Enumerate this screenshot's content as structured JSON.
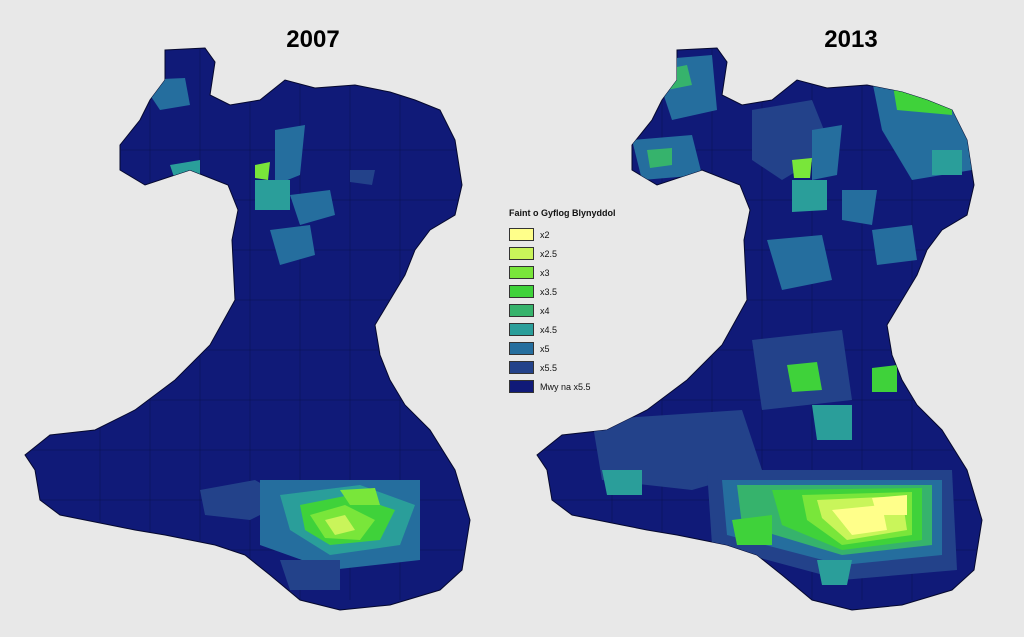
{
  "maps": [
    {
      "year": "2007"
    },
    {
      "year": "2013"
    }
  ],
  "legend": {
    "title": "Faint o Gyflog Blynyddol",
    "items": [
      {
        "label": "x2",
        "color": "#ffff8a"
      },
      {
        "label": "x2.5",
        "color": "#c9f55a"
      },
      {
        "label": "x3",
        "color": "#79e63a"
      },
      {
        "label": "x3.5",
        "color": "#3fd23a"
      },
      {
        "label": "x4",
        "color": "#36b36c"
      },
      {
        "label": "x4.5",
        "color": "#2a9e9a"
      },
      {
        "label": "x5",
        "color": "#256e9e"
      },
      {
        "label": "x5.5",
        "color": "#23428a"
      },
      {
        "label": "Mwy na x5.5",
        "color": "#101a78"
      }
    ]
  }
}
